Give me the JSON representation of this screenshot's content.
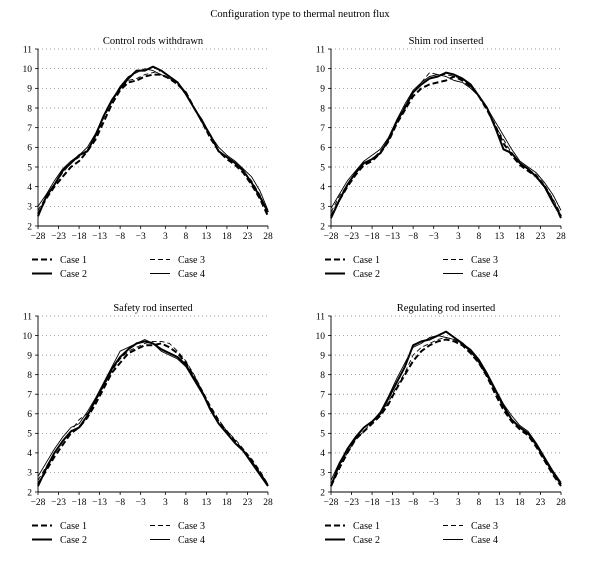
{
  "figure_title": "Configuration type to thermal neutron flux",
  "chart_data": [
    {
      "type": "line",
      "title": "Control rods withdrawn",
      "xlabel": "",
      "ylabel": "",
      "xlim": [
        -28,
        28
      ],
      "ylim": [
        2,
        11
      ],
      "xticks": [
        "-28",
        "-23",
        "-18",
        "-13",
        "-8",
        "-3",
        "3",
        "8",
        "13",
        "18",
        "23",
        "28"
      ],
      "yticks": [
        "2",
        "3",
        "4",
        "5",
        "6",
        "7",
        "8",
        "9",
        "10",
        "11"
      ],
      "grid": "horizontal-dotted",
      "legend": "bottom",
      "x": [
        -28,
        -26,
        -24,
        -22,
        -20,
        -18,
        -16,
        -14,
        -12,
        -10,
        -8,
        -6,
        -4,
        -2,
        0,
        2,
        4,
        6,
        8,
        10,
        12,
        14,
        16,
        18,
        20,
        22,
        24,
        26,
        28
      ],
      "series": [
        {
          "name": "Case 1",
          "style": "dashed-bold",
          "values": [
            2.6,
            3.4,
            4.0,
            4.5,
            5.0,
            5.3,
            5.8,
            6.4,
            7.3,
            8.2,
            8.9,
            9.3,
            9.4,
            9.6,
            9.7,
            9.7,
            9.5,
            9.2,
            8.8,
            8.0,
            7.3,
            6.5,
            5.8,
            5.4,
            5.1,
            4.7,
            4.1,
            3.4,
            2.5
          ]
        },
        {
          "name": "Case 2",
          "style": "solid-bold",
          "values": [
            2.5,
            3.5,
            4.1,
            4.8,
            5.2,
            5.6,
            5.8,
            6.6,
            7.6,
            8.4,
            9.0,
            9.5,
            9.9,
            9.9,
            10.1,
            9.9,
            9.6,
            9.3,
            8.7,
            8.0,
            7.3,
            6.6,
            5.8,
            5.5,
            5.2,
            4.8,
            4.2,
            3.5,
            2.7
          ]
        },
        {
          "name": "Case 3",
          "style": "dashed-thin",
          "values": [
            2.8,
            3.5,
            4.1,
            4.7,
            5.2,
            5.5,
            5.9,
            6.5,
            7.5,
            8.3,
            9.0,
            9.4,
            9.5,
            9.7,
            9.8,
            9.9,
            9.6,
            9.2,
            8.7,
            8.0,
            7.2,
            6.4,
            5.8,
            5.5,
            5.2,
            4.8,
            4.3,
            3.6,
            2.7
          ]
        },
        {
          "name": "Case 4",
          "style": "solid-thin",
          "values": [
            3.0,
            3.6,
            4.3,
            4.9,
            5.3,
            5.6,
            6.0,
            6.7,
            7.6,
            8.4,
            9.1,
            9.6,
            9.8,
            10.0,
            9.9,
            9.7,
            9.5,
            9.3,
            8.8,
            8.0,
            7.4,
            6.6,
            6.0,
            5.6,
            5.3,
            4.9,
            4.5,
            3.8,
            2.8
          ]
        }
      ]
    },
    {
      "type": "line",
      "title": "Shim rod inserted",
      "xlabel": "",
      "ylabel": "",
      "xlim": [
        -28,
        28
      ],
      "ylim": [
        2,
        11
      ],
      "xticks": [
        "-28",
        "-23",
        "-18",
        "-13",
        "-8",
        "-3",
        "3",
        "8",
        "13",
        "18",
        "23",
        "28"
      ],
      "yticks": [
        "2",
        "3",
        "4",
        "5",
        "6",
        "7",
        "8",
        "9",
        "10",
        "11"
      ],
      "grid": "horizontal-dotted",
      "legend": "bottom",
      "x": [
        -28,
        -26,
        -24,
        -22,
        -20,
        -18,
        -16,
        -14,
        -12,
        -10,
        -8,
        -6,
        -4,
        -2,
        0,
        2,
        4,
        6,
        8,
        10,
        12,
        14,
        16,
        18,
        20,
        22,
        24,
        26,
        28
      ],
      "series": [
        {
          "name": "Case 1",
          "style": "dashed-bold",
          "values": [
            2.5,
            3.3,
            4.0,
            4.6,
            5.1,
            5.3,
            5.7,
            6.3,
            7.2,
            7.9,
            8.6,
            9.0,
            9.2,
            9.3,
            9.4,
            9.6,
            9.4,
            9.1,
            8.6,
            7.9,
            7.1,
            6.2,
            5.6,
            5.1,
            4.8,
            4.5,
            4.0,
            3.3,
            2.4
          ]
        },
        {
          "name": "Case 2",
          "style": "solid-bold",
          "values": [
            2.4,
            3.3,
            4.1,
            4.7,
            5.2,
            5.4,
            5.7,
            6.4,
            7.3,
            8.0,
            8.8,
            9.2,
            9.5,
            9.6,
            9.8,
            9.7,
            9.5,
            9.2,
            8.6,
            8.0,
            7.0,
            5.9,
            5.7,
            5.2,
            4.9,
            4.5,
            4.0,
            3.2,
            2.5
          ]
        },
        {
          "name": "Case 3",
          "style": "dashed-thin",
          "values": [
            2.7,
            3.5,
            4.1,
            4.7,
            5.2,
            5.4,
            5.8,
            6.4,
            7.3,
            8.1,
            8.8,
            9.3,
            9.8,
            9.7,
            9.7,
            9.6,
            9.5,
            9.1,
            8.6,
            7.9,
            7.1,
            6.4,
            5.7,
            5.2,
            4.9,
            4.6,
            4.1,
            3.4,
            2.6
          ]
        },
        {
          "name": "Case 4",
          "style": "solid-thin",
          "values": [
            2.9,
            3.6,
            4.3,
            4.8,
            5.3,
            5.6,
            5.9,
            6.5,
            7.4,
            8.2,
            8.9,
            9.3,
            9.6,
            9.7,
            9.6,
            9.4,
            9.3,
            9.0,
            8.6,
            8.0,
            7.3,
            6.6,
            5.9,
            5.3,
            5.0,
            4.7,
            4.2,
            3.6,
            2.8
          ]
        }
      ]
    },
    {
      "type": "line",
      "title": "Safety rod inserted",
      "xlabel": "",
      "ylabel": "",
      "xlim": [
        -28,
        28
      ],
      "ylim": [
        2,
        11
      ],
      "xticks": [
        "-28",
        "-23",
        "-18",
        "-13",
        "-8",
        "-3",
        "3",
        "8",
        "13",
        "18",
        "23",
        "28"
      ],
      "yticks": [
        "2",
        "3",
        "4",
        "5",
        "6",
        "7",
        "8",
        "9",
        "10",
        "11"
      ],
      "grid": "horizontal-dotted",
      "legend": "bottom",
      "x": [
        -28,
        -26,
        -24,
        -22,
        -20,
        -18,
        -16,
        -14,
        -12,
        -10,
        -8,
        -6,
        -4,
        -2,
        0,
        2,
        4,
        6,
        8,
        10,
        12,
        14,
        16,
        18,
        20,
        22,
        24,
        26,
        28
      ],
      "series": [
        {
          "name": "Case 1",
          "style": "dashed-bold",
          "values": [
            2.4,
            3.1,
            3.8,
            4.4,
            5.0,
            5.3,
            5.8,
            6.5,
            7.3,
            8.1,
            8.6,
            9.1,
            9.3,
            9.5,
            9.5,
            9.6,
            9.4,
            9.1,
            8.6,
            7.9,
            7.1,
            6.3,
            5.6,
            5.1,
            4.6,
            4.1,
            3.6,
            3.0,
            2.3
          ]
        },
        {
          "name": "Case 2",
          "style": "solid-bold",
          "values": [
            2.3,
            3.2,
            4.0,
            4.6,
            5.1,
            5.3,
            5.9,
            6.7,
            7.5,
            8.3,
            8.9,
            9.3,
            9.6,
            9.7,
            9.6,
            9.3,
            9.1,
            8.9,
            8.5,
            7.8,
            7.1,
            6.2,
            5.5,
            5.0,
            4.5,
            4.1,
            3.5,
            2.9,
            2.3
          ]
        },
        {
          "name": "Case 3",
          "style": "dashed-thin",
          "values": [
            2.6,
            3.3,
            4.0,
            4.6,
            5.1,
            5.7,
            6.0,
            6.6,
            7.4,
            8.2,
            8.8,
            9.2,
            9.4,
            9.6,
            9.7,
            9.7,
            9.6,
            9.2,
            8.7,
            8.0,
            7.2,
            6.4,
            5.7,
            5.1,
            4.7,
            4.2,
            3.7,
            3.1,
            2.4
          ]
        },
        {
          "name": "Case 4",
          "style": "solid-thin",
          "values": [
            2.8,
            3.5,
            4.2,
            4.8,
            5.3,
            5.5,
            6.1,
            6.8,
            7.6,
            8.4,
            9.2,
            9.4,
            9.6,
            9.8,
            9.6,
            9.2,
            9.0,
            8.8,
            8.4,
            7.7,
            7.0,
            6.3,
            5.5,
            5.0,
            4.5,
            4.1,
            3.6,
            3.0,
            2.4
          ]
        }
      ]
    },
    {
      "type": "line",
      "title": "Regulating rod inserted",
      "xlabel": "",
      "ylabel": "",
      "xlim": [
        -28,
        28
      ],
      "ylim": [
        2,
        11
      ],
      "xticks": [
        "-28",
        "-23",
        "-18",
        "-13",
        "-8",
        "-3",
        "3",
        "8",
        "13",
        "18",
        "23",
        "28"
      ],
      "yticks": [
        "2",
        "3",
        "4",
        "5",
        "6",
        "7",
        "8",
        "9",
        "10",
        "11"
      ],
      "grid": "horizontal-dotted",
      "legend": "bottom",
      "x": [
        -28,
        -26,
        -24,
        -22,
        -20,
        -18,
        -16,
        -14,
        -12,
        -10,
        -8,
        -6,
        -4,
        -2,
        0,
        2,
        4,
        6,
        8,
        10,
        12,
        14,
        16,
        18,
        20,
        22,
        24,
        26,
        28
      ],
      "series": [
        {
          "name": "Case 1",
          "style": "dashed-bold",
          "values": [
            2.3,
            3.2,
            4.0,
            4.7,
            5.1,
            5.5,
            5.9,
            6.5,
            7.3,
            8.0,
            8.7,
            9.2,
            9.5,
            9.7,
            9.8,
            9.7,
            9.5,
            9.1,
            8.6,
            7.9,
            7.0,
            6.2,
            5.6,
            5.2,
            4.9,
            4.3,
            3.6,
            2.9,
            2.3
          ]
        },
        {
          "name": "Case 2",
          "style": "solid-bold",
          "values": [
            2.3,
            3.4,
            4.2,
            4.8,
            5.3,
            5.6,
            6.0,
            6.8,
            7.6,
            8.4,
            9.5,
            9.7,
            9.8,
            10.0,
            10.2,
            9.9,
            9.6,
            9.2,
            8.7,
            8.0,
            7.2,
            6.4,
            5.7,
            5.3,
            5.0,
            4.4,
            3.7,
            3.0,
            2.4
          ]
        },
        {
          "name": "Case 3",
          "style": "dashed-thin",
          "values": [
            2.4,
            3.3,
            4.0,
            4.7,
            5.1,
            5.6,
            5.9,
            6.6,
            7.4,
            8.1,
            9.0,
            9.4,
            9.6,
            9.8,
            9.9,
            9.8,
            9.5,
            9.2,
            8.6,
            7.9,
            7.1,
            6.3,
            5.7,
            5.3,
            5.0,
            4.4,
            3.7,
            3.0,
            2.4
          ]
        },
        {
          "name": "Case 4",
          "style": "solid-thin",
          "values": [
            2.6,
            3.5,
            4.2,
            4.8,
            5.3,
            5.6,
            6.1,
            6.9,
            7.8,
            8.6,
            9.4,
            9.6,
            9.9,
            10.0,
            9.9,
            9.8,
            9.6,
            9.3,
            8.8,
            8.1,
            7.3,
            6.5,
            5.9,
            5.4,
            5.1,
            4.5,
            3.8,
            3.1,
            2.5
          ]
        }
      ]
    }
  ]
}
